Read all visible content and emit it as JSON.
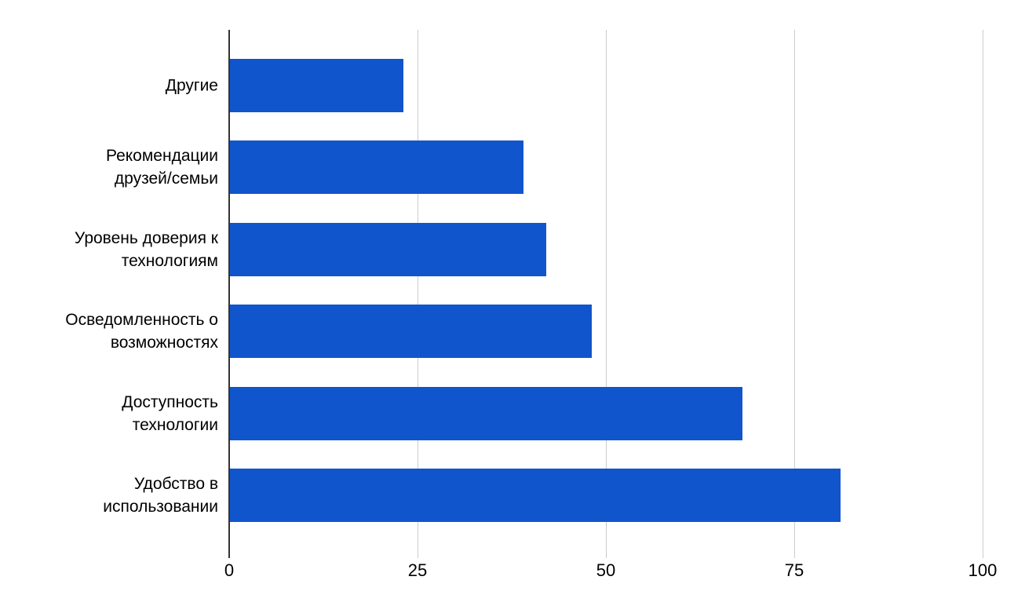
{
  "chart_data": {
    "type": "bar",
    "orientation": "horizontal",
    "title": "",
    "xlabel": "",
    "ylabel": "",
    "categories": [
      "Другие",
      "Рекомендации друзей/семьи",
      "Уровень доверия к технологиям",
      "Осведомленность о возможностях",
      "Доступность технологии",
      "Удобство в использовании"
    ],
    "category_display_lines": [
      [
        "Другие"
      ],
      [
        "Рекомендации",
        "друзей/семьи"
      ],
      [
        "Уровень доверия к",
        "технологиям"
      ],
      [
        "Осведомленность о",
        "возможностях"
      ],
      [
        "Доступность",
        "технологии"
      ],
      [
        "Удобство в",
        "использовании"
      ]
    ],
    "values": [
      23,
      39,
      42,
      48,
      68,
      81
    ],
    "x_ticks": [
      0,
      25,
      50,
      75,
      100
    ],
    "xlim": [
      0,
      100
    ],
    "grid": true,
    "legend_position": "none",
    "colors": {
      "bar": "#1155CC",
      "gridline": "#CCCCCC",
      "zero_axis_line": "#333333",
      "text": "#000000",
      "background": "#FFFFFF"
    }
  }
}
